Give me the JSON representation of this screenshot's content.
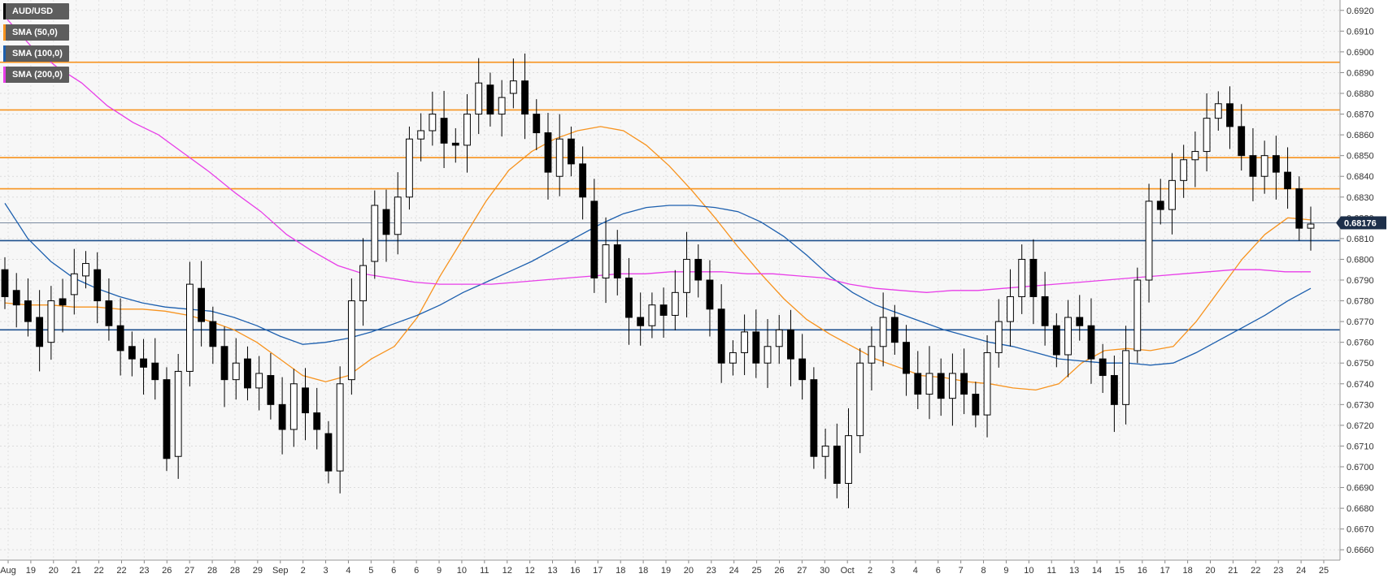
{
  "legend": [
    {
      "label": "AUD/USD",
      "color": "#000000"
    },
    {
      "label": "SMA (50,0)",
      "color": "#f7931e"
    },
    {
      "label": "SMA (100,0)",
      "color": "#1c5fae"
    },
    {
      "label": "SMA (200,0)",
      "color": "#e83ee8"
    }
  ],
  "current_price": "0.68176",
  "chart_data": {
    "type": "candlestick",
    "title": "",
    "ylim": [
      0.6655,
      0.6925
    ],
    "y_ticks": [
      "0.6660",
      "0.6670",
      "0.6680",
      "0.6690",
      "0.6700",
      "0.6710",
      "0.6720",
      "0.6730",
      "0.6740",
      "0.6750",
      "0.6760",
      "0.6770",
      "0.6780",
      "0.6790",
      "0.6800",
      "0.6810",
      "0.6820",
      "0.6830",
      "0.6840",
      "0.6850",
      "0.6860",
      "0.6870",
      "0.6880",
      "0.6890",
      "0.6900",
      "0.6910",
      "0.6920"
    ],
    "x_labels": [
      "Aug",
      "19",
      "20",
      "21",
      "22",
      "22",
      "23",
      "26",
      "27",
      "28",
      "28",
      "29",
      "Sep",
      "2",
      "3",
      "4",
      "5",
      "6",
      "6",
      "9",
      "10",
      "11",
      "12",
      "12",
      "13",
      "16",
      "17",
      "18",
      "18",
      "19",
      "20",
      "23",
      "24",
      "25",
      "26",
      "27",
      "30",
      "Oct",
      "2",
      "3",
      "4",
      "6",
      "7",
      "8",
      "9",
      "10",
      "11",
      "13",
      "14",
      "15",
      "16",
      "17",
      "18",
      "20",
      "21",
      "22",
      "23",
      "24",
      "25"
    ],
    "grid": true,
    "horizontal_levels": [
      {
        "value": 0.6895,
        "color": "#f7931e"
      },
      {
        "value": 0.6872,
        "color": "#f7931e"
      },
      {
        "value": 0.6849,
        "color": "#f7931e"
      },
      {
        "value": 0.6834,
        "color": "#f7931e"
      },
      {
        "value": 0.6809,
        "color": "#1c4f8c"
      },
      {
        "value": 0.6766,
        "color": "#1c4f8c"
      }
    ],
    "series": [
      {
        "name": "SMA (50,0)",
        "color": "#f7931e",
        "values": [
          0.6779,
          0.6778,
          0.6778,
          0.6777,
          0.6777,
          0.6776,
          0.6776,
          0.6775,
          0.6773,
          0.677,
          0.6766,
          0.676,
          0.6752,
          0.6744,
          0.6741,
          0.6744,
          0.6752,
          0.6758,
          0.6772,
          0.6792,
          0.681,
          0.6828,
          0.6843,
          0.6852,
          0.6858,
          0.6862,
          0.6864,
          0.6862,
          0.6855,
          0.6845,
          0.6833,
          0.682,
          0.6806,
          0.6793,
          0.6781,
          0.6771,
          0.6764,
          0.6758,
          0.6752,
          0.6748,
          0.6744,
          0.6743,
          0.6741,
          0.674,
          0.6738,
          0.6737,
          0.674,
          0.675,
          0.6756,
          0.6757,
          0.6756,
          0.6758,
          0.677,
          0.6785,
          0.68,
          0.6812,
          0.682,
          0.6819
        ]
      },
      {
        "name": "SMA (100,0)",
        "color": "#1c5fae",
        "values": [
          0.6827,
          0.681,
          0.6799,
          0.6791,
          0.6786,
          0.6782,
          0.6779,
          0.6777,
          0.6776,
          0.6775,
          0.6772,
          0.6768,
          0.6763,
          0.6759,
          0.676,
          0.6762,
          0.6765,
          0.6769,
          0.6773,
          0.6778,
          0.6784,
          0.6789,
          0.6794,
          0.6799,
          0.6805,
          0.6811,
          0.6817,
          0.6822,
          0.6825,
          0.6826,
          0.6826,
          0.6825,
          0.6823,
          0.6818,
          0.6811,
          0.6802,
          0.6792,
          0.6784,
          0.6778,
          0.6774,
          0.677,
          0.6766,
          0.6763,
          0.676,
          0.6758,
          0.6755,
          0.6752,
          0.6751,
          0.675,
          0.675,
          0.6749,
          0.675,
          0.6755,
          0.6761,
          0.6767,
          0.6773,
          0.678,
          0.6786
        ]
      },
      {
        "name": "SMA (200,0)",
        "color": "#e83ee8",
        "values": [
          0.6917,
          0.6903,
          0.6893,
          0.6885,
          0.6874,
          0.6866,
          0.686,
          0.6851,
          0.6842,
          0.6832,
          0.6823,
          0.6812,
          0.6804,
          0.6797,
          0.6793,
          0.6791,
          0.6789,
          0.6788,
          0.6788,
          0.6788,
          0.6789,
          0.679,
          0.6791,
          0.6792,
          0.6793,
          0.6793,
          0.6794,
          0.6794,
          0.6794,
          0.6793,
          0.6793,
          0.6792,
          0.6791,
          0.6788,
          0.6786,
          0.6785,
          0.6784,
          0.6785,
          0.6785,
          0.6786,
          0.6787,
          0.6788,
          0.6789,
          0.679,
          0.6791,
          0.6792,
          0.6793,
          0.6794,
          0.6795,
          0.6795,
          0.6794,
          0.6794
        ]
      },
      {
        "name": "AUD/USD",
        "type": "candle",
        "values": [
          [
            0.6795,
            0.6782
          ],
          [
            0.6785,
            0.6778
          ],
          [
            0.678,
            0.677
          ],
          [
            0.6772,
            0.6758
          ],
          [
            0.676,
            0.678
          ],
          [
            0.6781,
            0.6778
          ],
          [
            0.6783,
            0.6793
          ],
          [
            0.6792,
            0.6798
          ],
          [
            0.6795,
            0.678
          ],
          [
            0.678,
            0.6768
          ],
          [
            0.6768,
            0.6756
          ],
          [
            0.6758,
            0.6752
          ],
          [
            0.6752,
            0.6748
          ],
          [
            0.675,
            0.6742
          ],
          [
            0.6742,
            0.6704
          ],
          [
            0.6705,
            0.6746
          ],
          [
            0.6746,
            0.6788
          ],
          [
            0.6786,
            0.677
          ],
          [
            0.677,
            0.6758
          ],
          [
            0.6758,
            0.6742
          ],
          [
            0.6742,
            0.675
          ],
          [
            0.6752,
            0.6738
          ],
          [
            0.6738,
            0.6745
          ],
          [
            0.6744,
            0.673
          ],
          [
            0.673,
            0.6718
          ],
          [
            0.6718,
            0.674
          ],
          [
            0.6738,
            0.6726
          ],
          [
            0.6726,
            0.6718
          ],
          [
            0.6716,
            0.6698
          ],
          [
            0.6698,
            0.674
          ],
          [
            0.6742,
            0.678
          ],
          [
            0.678,
            0.6797
          ],
          [
            0.6799,
            0.6826
          ],
          [
            0.6824,
            0.6812
          ],
          [
            0.6812,
            0.683
          ],
          [
            0.683,
            0.6858
          ],
          [
            0.6858,
            0.6862
          ],
          [
            0.6862,
            0.687
          ],
          [
            0.6868,
            0.6856
          ],
          [
            0.6856,
            0.6855
          ],
          [
            0.6855,
            0.687
          ],
          [
            0.687,
            0.6885
          ],
          [
            0.6884,
            0.687
          ],
          [
            0.687,
            0.6878
          ],
          [
            0.688,
            0.6886
          ],
          [
            0.6886,
            0.687
          ],
          [
            0.687,
            0.6861
          ],
          [
            0.6861,
            0.6842
          ],
          [
            0.684,
            0.6858
          ],
          [
            0.6858,
            0.6846
          ],
          [
            0.6846,
            0.683
          ],
          [
            0.6828,
            0.6791
          ],
          [
            0.6791,
            0.6807
          ],
          [
            0.6807,
            0.6791
          ],
          [
            0.6791,
            0.6772
          ],
          [
            0.6772,
            0.6768
          ],
          [
            0.6768,
            0.6778
          ],
          [
            0.6778,
            0.6773
          ],
          [
            0.6773,
            0.6784
          ],
          [
            0.6784,
            0.68
          ],
          [
            0.68,
            0.679
          ],
          [
            0.679,
            0.6776
          ],
          [
            0.6776,
            0.675
          ],
          [
            0.675,
            0.6755
          ],
          [
            0.6755,
            0.6765
          ],
          [
            0.6765,
            0.675
          ],
          [
            0.675,
            0.6758
          ],
          [
            0.6758,
            0.6766
          ],
          [
            0.6766,
            0.6752
          ],
          [
            0.6752,
            0.6742
          ],
          [
            0.6742,
            0.6705
          ],
          [
            0.6705,
            0.671
          ],
          [
            0.671,
            0.6692
          ],
          [
            0.6692,
            0.6715
          ],
          [
            0.6715,
            0.675
          ],
          [
            0.675,
            0.6758
          ],
          [
            0.6758,
            0.6772
          ],
          [
            0.6772,
            0.676
          ],
          [
            0.676,
            0.6745
          ],
          [
            0.6745,
            0.6735
          ],
          [
            0.6735,
            0.6745
          ],
          [
            0.6745,
            0.6733
          ],
          [
            0.6733,
            0.6745
          ],
          [
            0.6745,
            0.6735
          ],
          [
            0.6735,
            0.6725
          ],
          [
            0.6725,
            0.6755
          ],
          [
            0.6755,
            0.677
          ],
          [
            0.677,
            0.6782
          ],
          [
            0.6782,
            0.68
          ],
          [
            0.68,
            0.6782
          ],
          [
            0.6782,
            0.6768
          ],
          [
            0.6768,
            0.6754
          ],
          [
            0.6754,
            0.6772
          ],
          [
            0.6772,
            0.6768
          ],
          [
            0.6768,
            0.6752
          ],
          [
            0.6752,
            0.6744
          ],
          [
            0.6744,
            0.673
          ],
          [
            0.673,
            0.6756
          ],
          [
            0.6756,
            0.679
          ],
          [
            0.679,
            0.6828
          ],
          [
            0.6828,
            0.6824
          ],
          [
            0.6824,
            0.6838
          ],
          [
            0.6838,
            0.6848
          ],
          [
            0.6848,
            0.6852
          ],
          [
            0.6852,
            0.6868
          ],
          [
            0.6868,
            0.6875
          ],
          [
            0.6875,
            0.6864
          ],
          [
            0.6864,
            0.685
          ],
          [
            0.685,
            0.684
          ],
          [
            0.684,
            0.685
          ],
          [
            0.685,
            0.6842
          ],
          [
            0.6842,
            0.6834
          ],
          [
            0.6834,
            0.6815
          ],
          [
            0.6815,
            0.6817
          ]
        ]
      }
    ]
  }
}
